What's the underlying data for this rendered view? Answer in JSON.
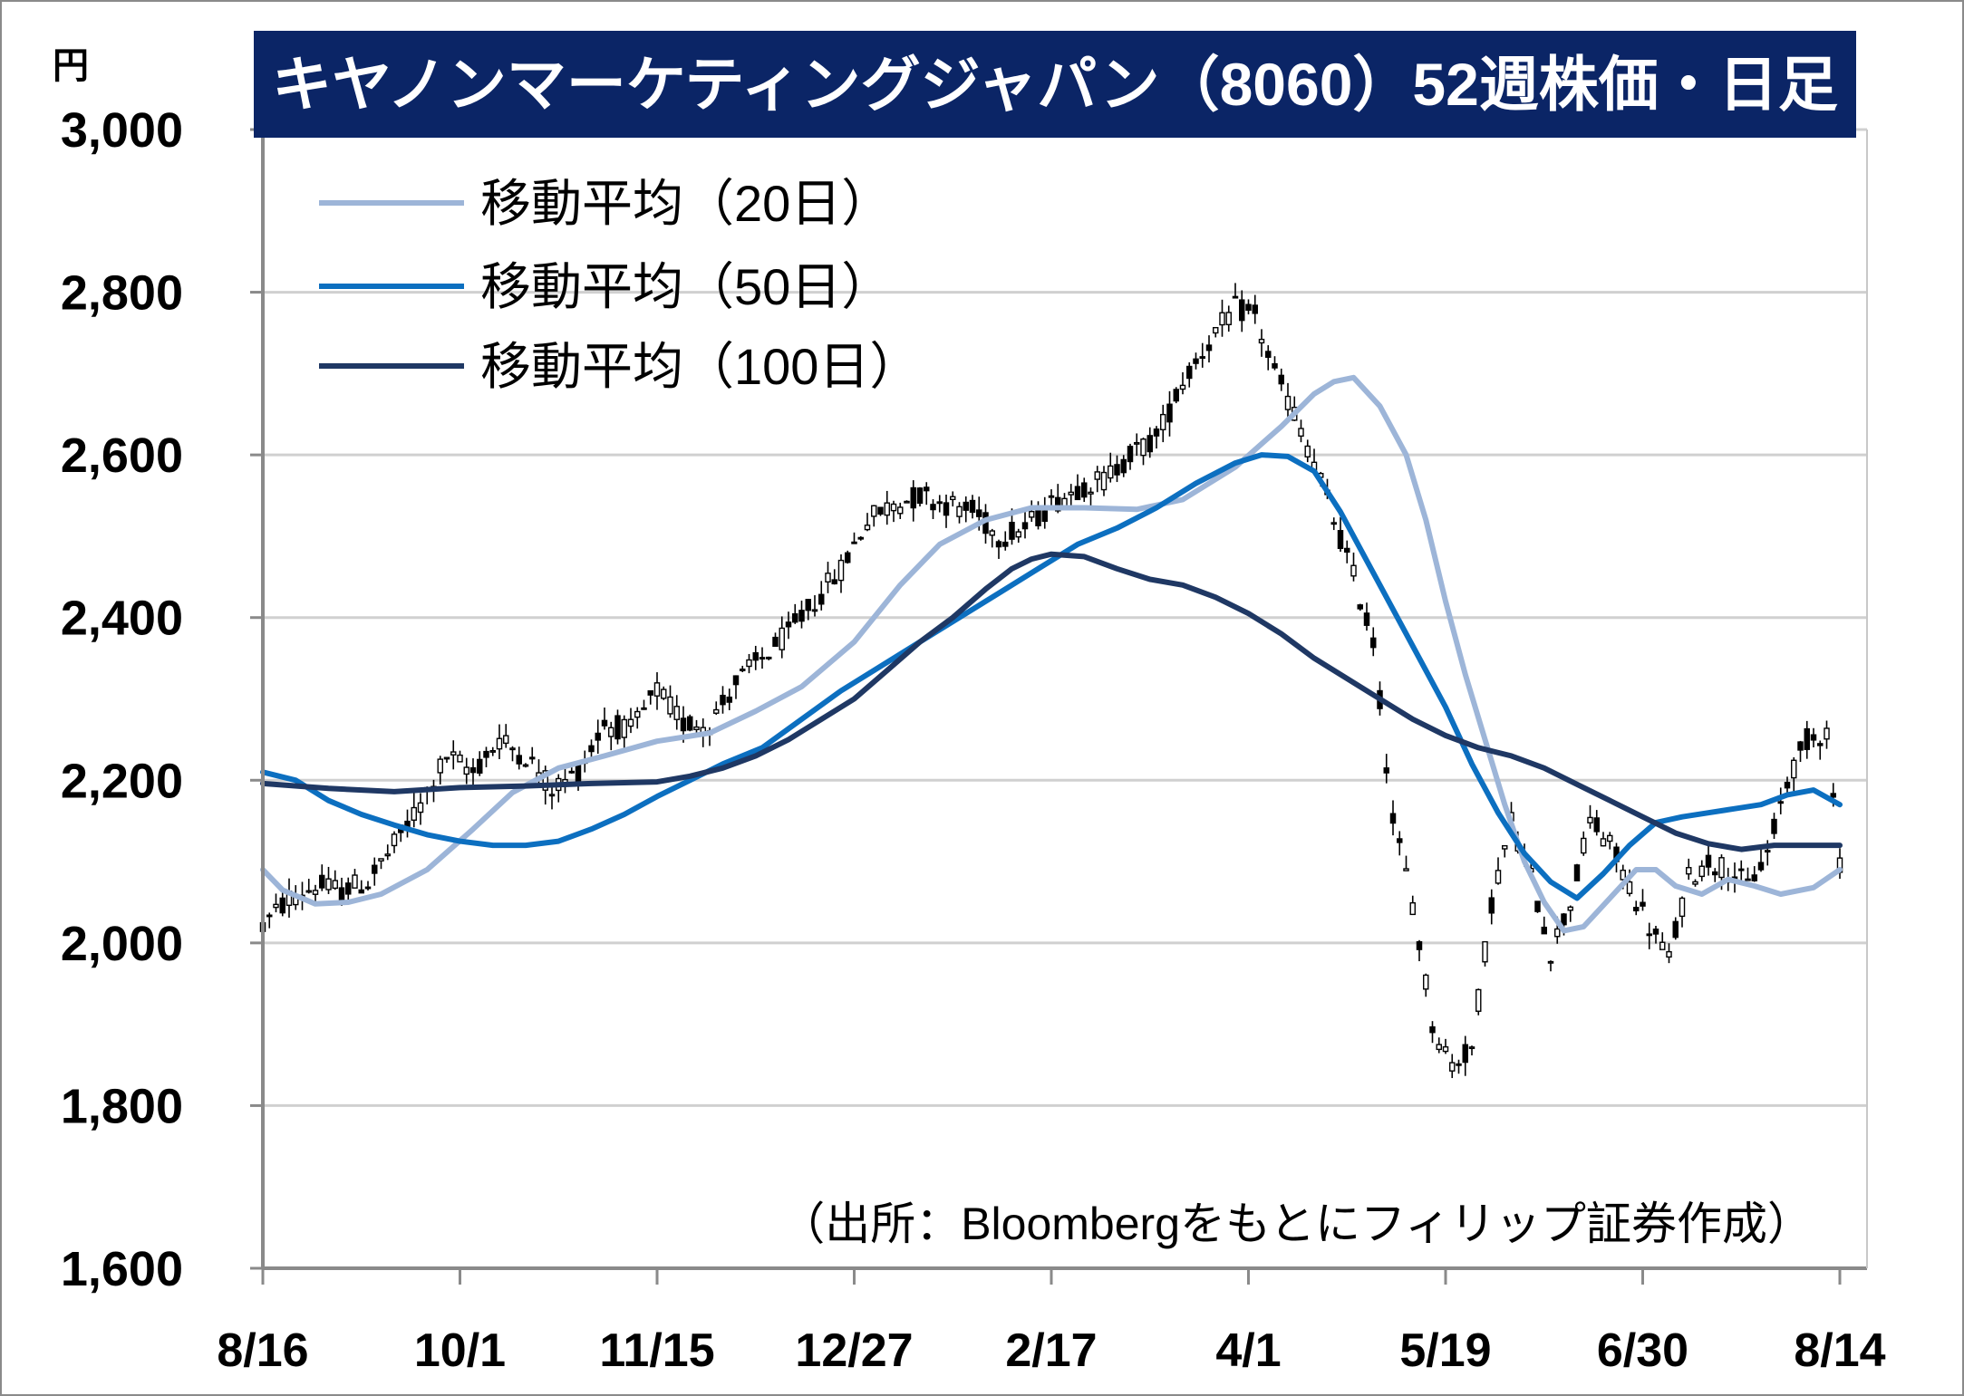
{
  "title": "キヤノンマーケティングジャパン（8060）52週株価・日足",
  "source": "（出所：Bloombergをもとにフィリップ証券作成）",
  "colors": {
    "title_bg": "#0b2566",
    "ma20": "#9db5d8",
    "ma50": "#0c6fc0",
    "ma100": "#1f3864",
    "candle": "#000000",
    "grid": "#d0d0d0"
  },
  "chart_data": {
    "type": "candlestick",
    "title": "キヤノンマーケティングジャパン（8060）52週株価・日足",
    "ylabel": "円",
    "ylim": [
      1600,
      3000
    ],
    "yticks": [
      1600,
      1800,
      2000,
      2200,
      2400,
      2600,
      2800,
      3000
    ],
    "ytick_labels": [
      "1,600",
      "1,800",
      "2,000",
      "2,200",
      "2,400",
      "2,600",
      "2,800",
      "3,000"
    ],
    "xtick_labels": [
      "8/16",
      "10/1",
      "11/15",
      "12/27",
      "2/17",
      "4/1",
      "5/19",
      "6/30",
      "8/14"
    ],
    "trading_days": 240,
    "grid": "horizontal",
    "legend_position": "top-left",
    "series": [
      {
        "name": "移動平均（20日）",
        "kind": "line",
        "color": "#9db5d8",
        "points": [
          [
            0,
            2090
          ],
          [
            3,
            2065
          ],
          [
            8,
            2048
          ],
          [
            13,
            2050
          ],
          [
            18,
            2060
          ],
          [
            25,
            2090
          ],
          [
            32,
            2140
          ],
          [
            38,
            2185
          ],
          [
            45,
            2215
          ],
          [
            52,
            2230
          ],
          [
            60,
            2248
          ],
          [
            68,
            2258
          ],
          [
            75,
            2285
          ],
          [
            82,
            2315
          ],
          [
            90,
            2370
          ],
          [
            97,
            2440
          ],
          [
            103,
            2490
          ],
          [
            110,
            2520
          ],
          [
            117,
            2535
          ],
          [
            125,
            2535
          ],
          [
            133,
            2533
          ],
          [
            140,
            2545
          ],
          [
            148,
            2585
          ],
          [
            155,
            2635
          ],
          [
            160,
            2675
          ],
          [
            163,
            2690
          ],
          [
            166,
            2695
          ],
          [
            170,
            2660
          ],
          [
            174,
            2600
          ],
          [
            177,
            2520
          ],
          [
            180,
            2420
          ],
          [
            183,
            2330
          ],
          [
            186,
            2250
          ],
          [
            189,
            2170
          ],
          [
            192,
            2100
          ],
          [
            195,
            2050
          ],
          [
            198,
            2015
          ],
          [
            201,
            2020
          ],
          [
            205,
            2055
          ],
          [
            209,
            2090
          ],
          [
            212,
            2090
          ],
          [
            215,
            2070
          ],
          [
            219,
            2060
          ],
          [
            223,
            2078
          ],
          [
            227,
            2070
          ],
          [
            231,
            2060
          ],
          [
            236,
            2068
          ],
          [
            240,
            2090
          ]
        ]
      },
      {
        "name": "移動平均（50日）",
        "kind": "line",
        "color": "#0c6fc0",
        "points": [
          [
            0,
            2210
          ],
          [
            5,
            2200
          ],
          [
            10,
            2175
          ],
          [
            15,
            2158
          ],
          [
            20,
            2145
          ],
          [
            25,
            2133
          ],
          [
            30,
            2125
          ],
          [
            35,
            2120
          ],
          [
            40,
            2120
          ],
          [
            45,
            2125
          ],
          [
            50,
            2140
          ],
          [
            55,
            2158
          ],
          [
            60,
            2180
          ],
          [
            65,
            2200
          ],
          [
            70,
            2220
          ],
          [
            76,
            2240
          ],
          [
            82,
            2275
          ],
          [
            88,
            2310
          ],
          [
            94,
            2340
          ],
          [
            100,
            2370
          ],
          [
            106,
            2400
          ],
          [
            112,
            2430
          ],
          [
            118,
            2460
          ],
          [
            124,
            2490
          ],
          [
            130,
            2510
          ],
          [
            136,
            2535
          ],
          [
            142,
            2565
          ],
          [
            148,
            2590
          ],
          [
            152,
            2600
          ],
          [
            156,
            2598
          ],
          [
            160,
            2580
          ],
          [
            164,
            2530
          ],
          [
            168,
            2470
          ],
          [
            172,
            2410
          ],
          [
            176,
            2350
          ],
          [
            180,
            2290
          ],
          [
            184,
            2220
          ],
          [
            188,
            2160
          ],
          [
            192,
            2110
          ],
          [
            196,
            2075
          ],
          [
            200,
            2055
          ],
          [
            204,
            2085
          ],
          [
            208,
            2120
          ],
          [
            212,
            2148
          ],
          [
            216,
            2155
          ],
          [
            220,
            2160
          ],
          [
            224,
            2165
          ],
          [
            228,
            2170
          ],
          [
            232,
            2182
          ],
          [
            236,
            2188
          ],
          [
            240,
            2170
          ]
        ]
      },
      {
        "name": "移動平均（100日）",
        "kind": "line",
        "color": "#1f3864",
        "points": [
          [
            0,
            2196
          ],
          [
            10,
            2190
          ],
          [
            20,
            2186
          ],
          [
            30,
            2191
          ],
          [
            40,
            2193
          ],
          [
            50,
            2196
          ],
          [
            55,
            2197
          ],
          [
            60,
            2198
          ],
          [
            65,
            2205
          ],
          [
            70,
            2215
          ],
          [
            75,
            2230
          ],
          [
            80,
            2250
          ],
          [
            85,
            2275
          ],
          [
            90,
            2300
          ],
          [
            95,
            2335
          ],
          [
            100,
            2370
          ],
          [
            105,
            2400
          ],
          [
            110,
            2435
          ],
          [
            114,
            2460
          ],
          [
            117,
            2472
          ],
          [
            120,
            2478
          ],
          [
            125,
            2475
          ],
          [
            130,
            2460
          ],
          [
            135,
            2447
          ],
          [
            140,
            2440
          ],
          [
            145,
            2425
          ],
          [
            150,
            2405
          ],
          [
            155,
            2380
          ],
          [
            160,
            2350
          ],
          [
            165,
            2325
          ],
          [
            170,
            2300
          ],
          [
            175,
            2275
          ],
          [
            180,
            2255
          ],
          [
            185,
            2240
          ],
          [
            190,
            2230
          ],
          [
            195,
            2215
          ],
          [
            200,
            2195
          ],
          [
            205,
            2175
          ],
          [
            210,
            2155
          ],
          [
            215,
            2135
          ],
          [
            220,
            2122
          ],
          [
            225,
            2115
          ],
          [
            230,
            2120
          ],
          [
            235,
            2120
          ],
          [
            240,
            2120
          ]
        ]
      }
    ]
  }
}
